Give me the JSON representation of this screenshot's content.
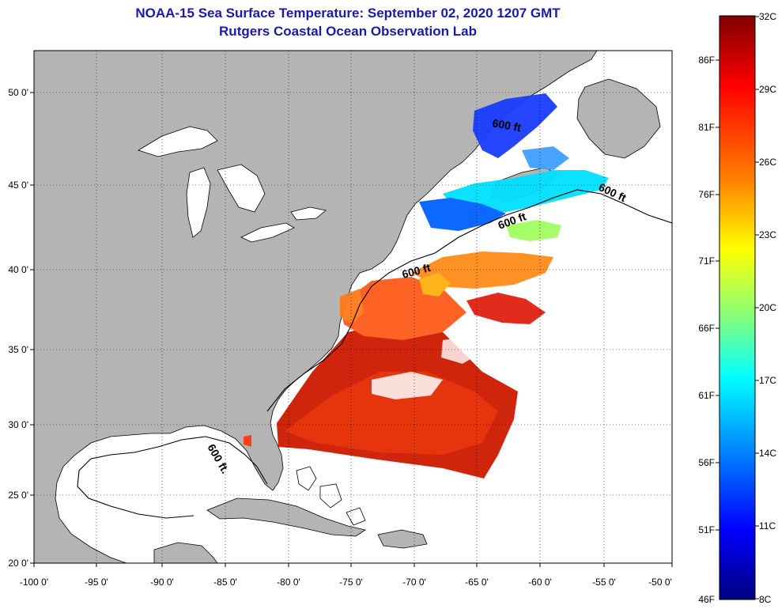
{
  "title": {
    "line1": "NOAA-15 Sea Surface Temperature:  September 02, 2020 1207 GMT",
    "line2": "Rutgers Coastal Ocean Observation Lab"
  },
  "map": {
    "lon_ticks": [
      "-100 0'",
      "-95 0'",
      "-90 0'",
      "-85 0'",
      "-80 0'",
      "-75 0'",
      "-70 0'",
      "-65 0'",
      "-60 0'",
      "-55 0'",
      "-50 0'"
    ],
    "lat_ticks": [
      "50 0'",
      "45 0'",
      "40 0'",
      "35 0'",
      "30 0'",
      "25 0'",
      "20 0'"
    ],
    "isobath_labels": [
      "600 ft.",
      "600 ft",
      "600 ft",
      "600 ft",
      "600 ft"
    ],
    "land_color": "#b4b4b4",
    "ocean_color": "#ffffff"
  },
  "colorbar": {
    "celsius_labels": [
      "32C",
      "29C",
      "26C",
      "23C",
      "20C",
      "17C",
      "14C",
      "11C",
      "8C"
    ],
    "fahrenheit_labels": [
      "86F",
      "81F",
      "76F",
      "71F",
      "66F",
      "61F",
      "56F",
      "51F",
      "46F"
    ],
    "colors": [
      "#800000",
      "#ff0000",
      "#ff8000",
      "#ffff00",
      "#80ff80",
      "#00ffff",
      "#0080ff",
      "#0000ff",
      "#000080"
    ]
  }
}
